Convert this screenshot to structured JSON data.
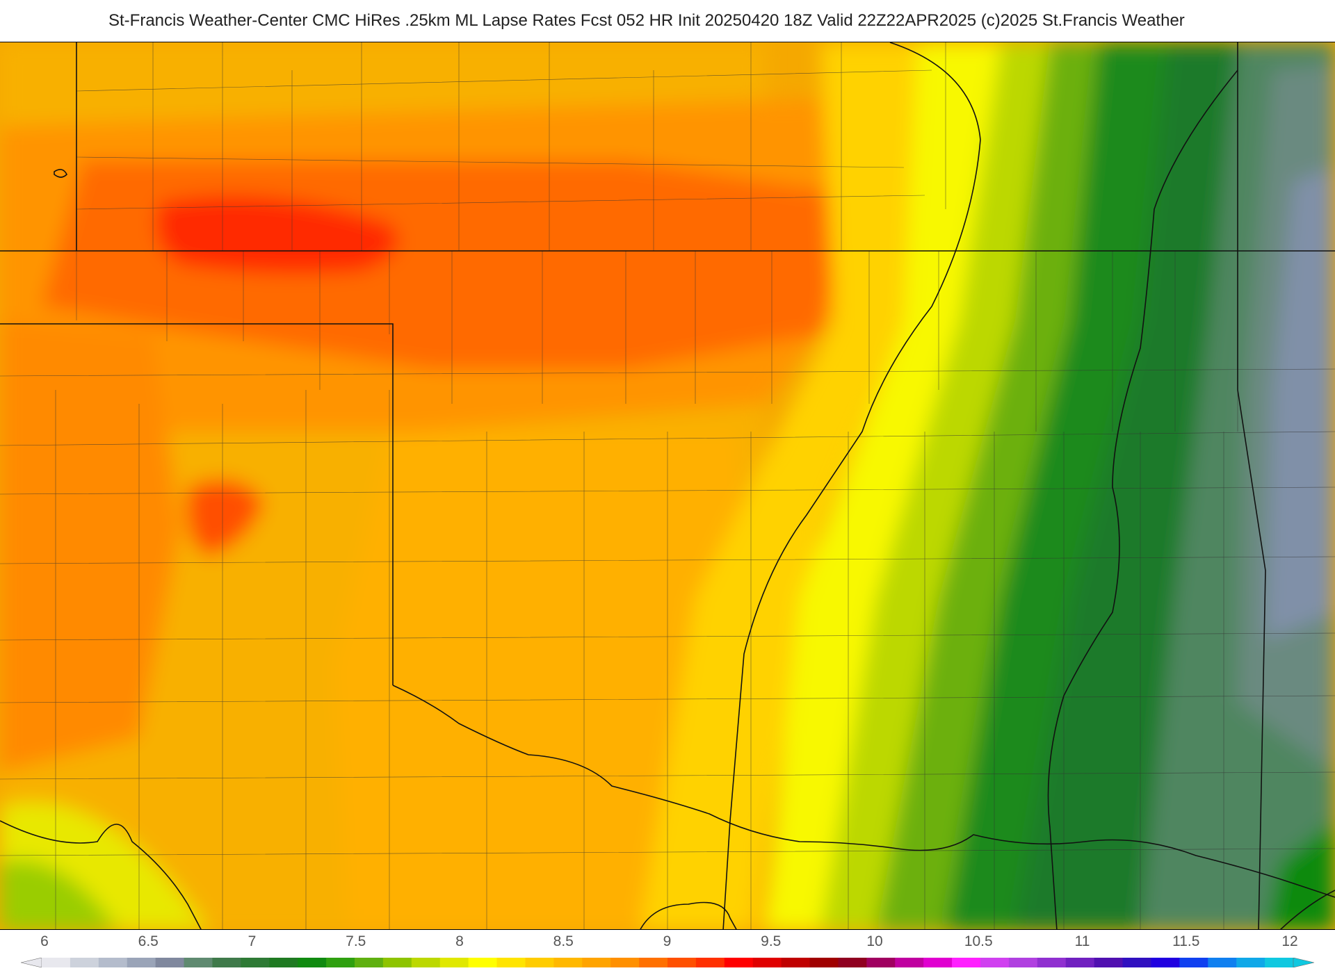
{
  "header": {
    "title": "St-Francis Weather-Center CMC HiRes .25km ML Lapse Rates  Fcst 052 HR Init 20250420 18Z  Valid 22Z22APR2025     (c)2025 St.Francis Weather"
  },
  "map": {
    "field": "ML Lapse Rates",
    "region_color_bands": [
      {
        "color": "#f5a800",
        "zone": "west"
      },
      {
        "color": "#ff6a00",
        "zone": "northwest"
      },
      {
        "color": "#ff2800",
        "zone": "northwest-core"
      },
      {
        "color": "#ffd200",
        "zone": "central"
      },
      {
        "color": "#f5f500",
        "zone": "central-east"
      },
      {
        "color": "#9acd00",
        "zone": "east"
      },
      {
        "color": "#2e8b2e",
        "zone": "east"
      },
      {
        "color": "#1f7a2a",
        "zone": "far-east"
      },
      {
        "color": "#5f8a70",
        "zone": "far-east"
      },
      {
        "color": "#8090a8",
        "zone": "far-east"
      }
    ]
  },
  "legend": {
    "tick_labels": [
      "6",
      "6.5",
      "7",
      "7.5",
      "8",
      "8.5",
      "9",
      "9.5",
      "10",
      "10.5",
      "11",
      "11.5",
      "12"
    ],
    "colors": [
      "#e8e8ee",
      "#cdd2dc",
      "#b4bccc",
      "#9aa4b8",
      "#80889e",
      "#5f8a70",
      "#3f7a4a",
      "#2e7a35",
      "#1f7a22",
      "#108a10",
      "#2fa010",
      "#5fb010",
      "#8ec400",
      "#bcd800",
      "#e0e800",
      "#ffff00",
      "#ffe400",
      "#ffcc00",
      "#ffb800",
      "#ffa400",
      "#ff9000",
      "#ff7000",
      "#ff5000",
      "#ff3000",
      "#ff0000",
      "#e00000",
      "#c00000",
      "#a00000",
      "#900020",
      "#a00060",
      "#c000a0",
      "#e000d0",
      "#ff20ff",
      "#d040f0",
      "#b040e0",
      "#9030d0",
      "#7020c0",
      "#5010b0",
      "#3010c0",
      "#2000e0",
      "#1040f0",
      "#1080f0",
      "#10a8e8",
      "#10c8e0"
    ]
  }
}
